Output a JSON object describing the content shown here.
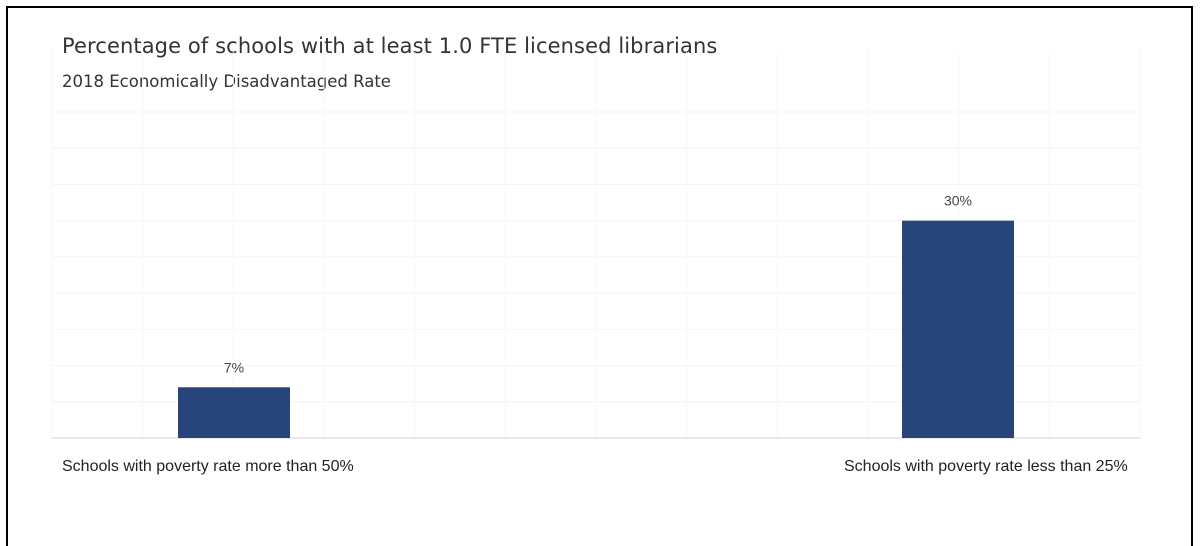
{
  "chart_data": {
    "type": "bar",
    "title": "Percentage of schools with at least 1.0 FTE licensed librarians",
    "subtitle": "2018 Economically Disadvantaged Rate",
    "categories": [
      "Schools with poverty rate more than 50%",
      "Schools with poverty rate less than 25%"
    ],
    "values": [
      7,
      30
    ],
    "data_labels": [
      "7%",
      "30%"
    ],
    "ylim": [
      0,
      45
    ],
    "bar_color": "#27457A",
    "grid": true,
    "xlabel": "",
    "ylabel": ""
  }
}
